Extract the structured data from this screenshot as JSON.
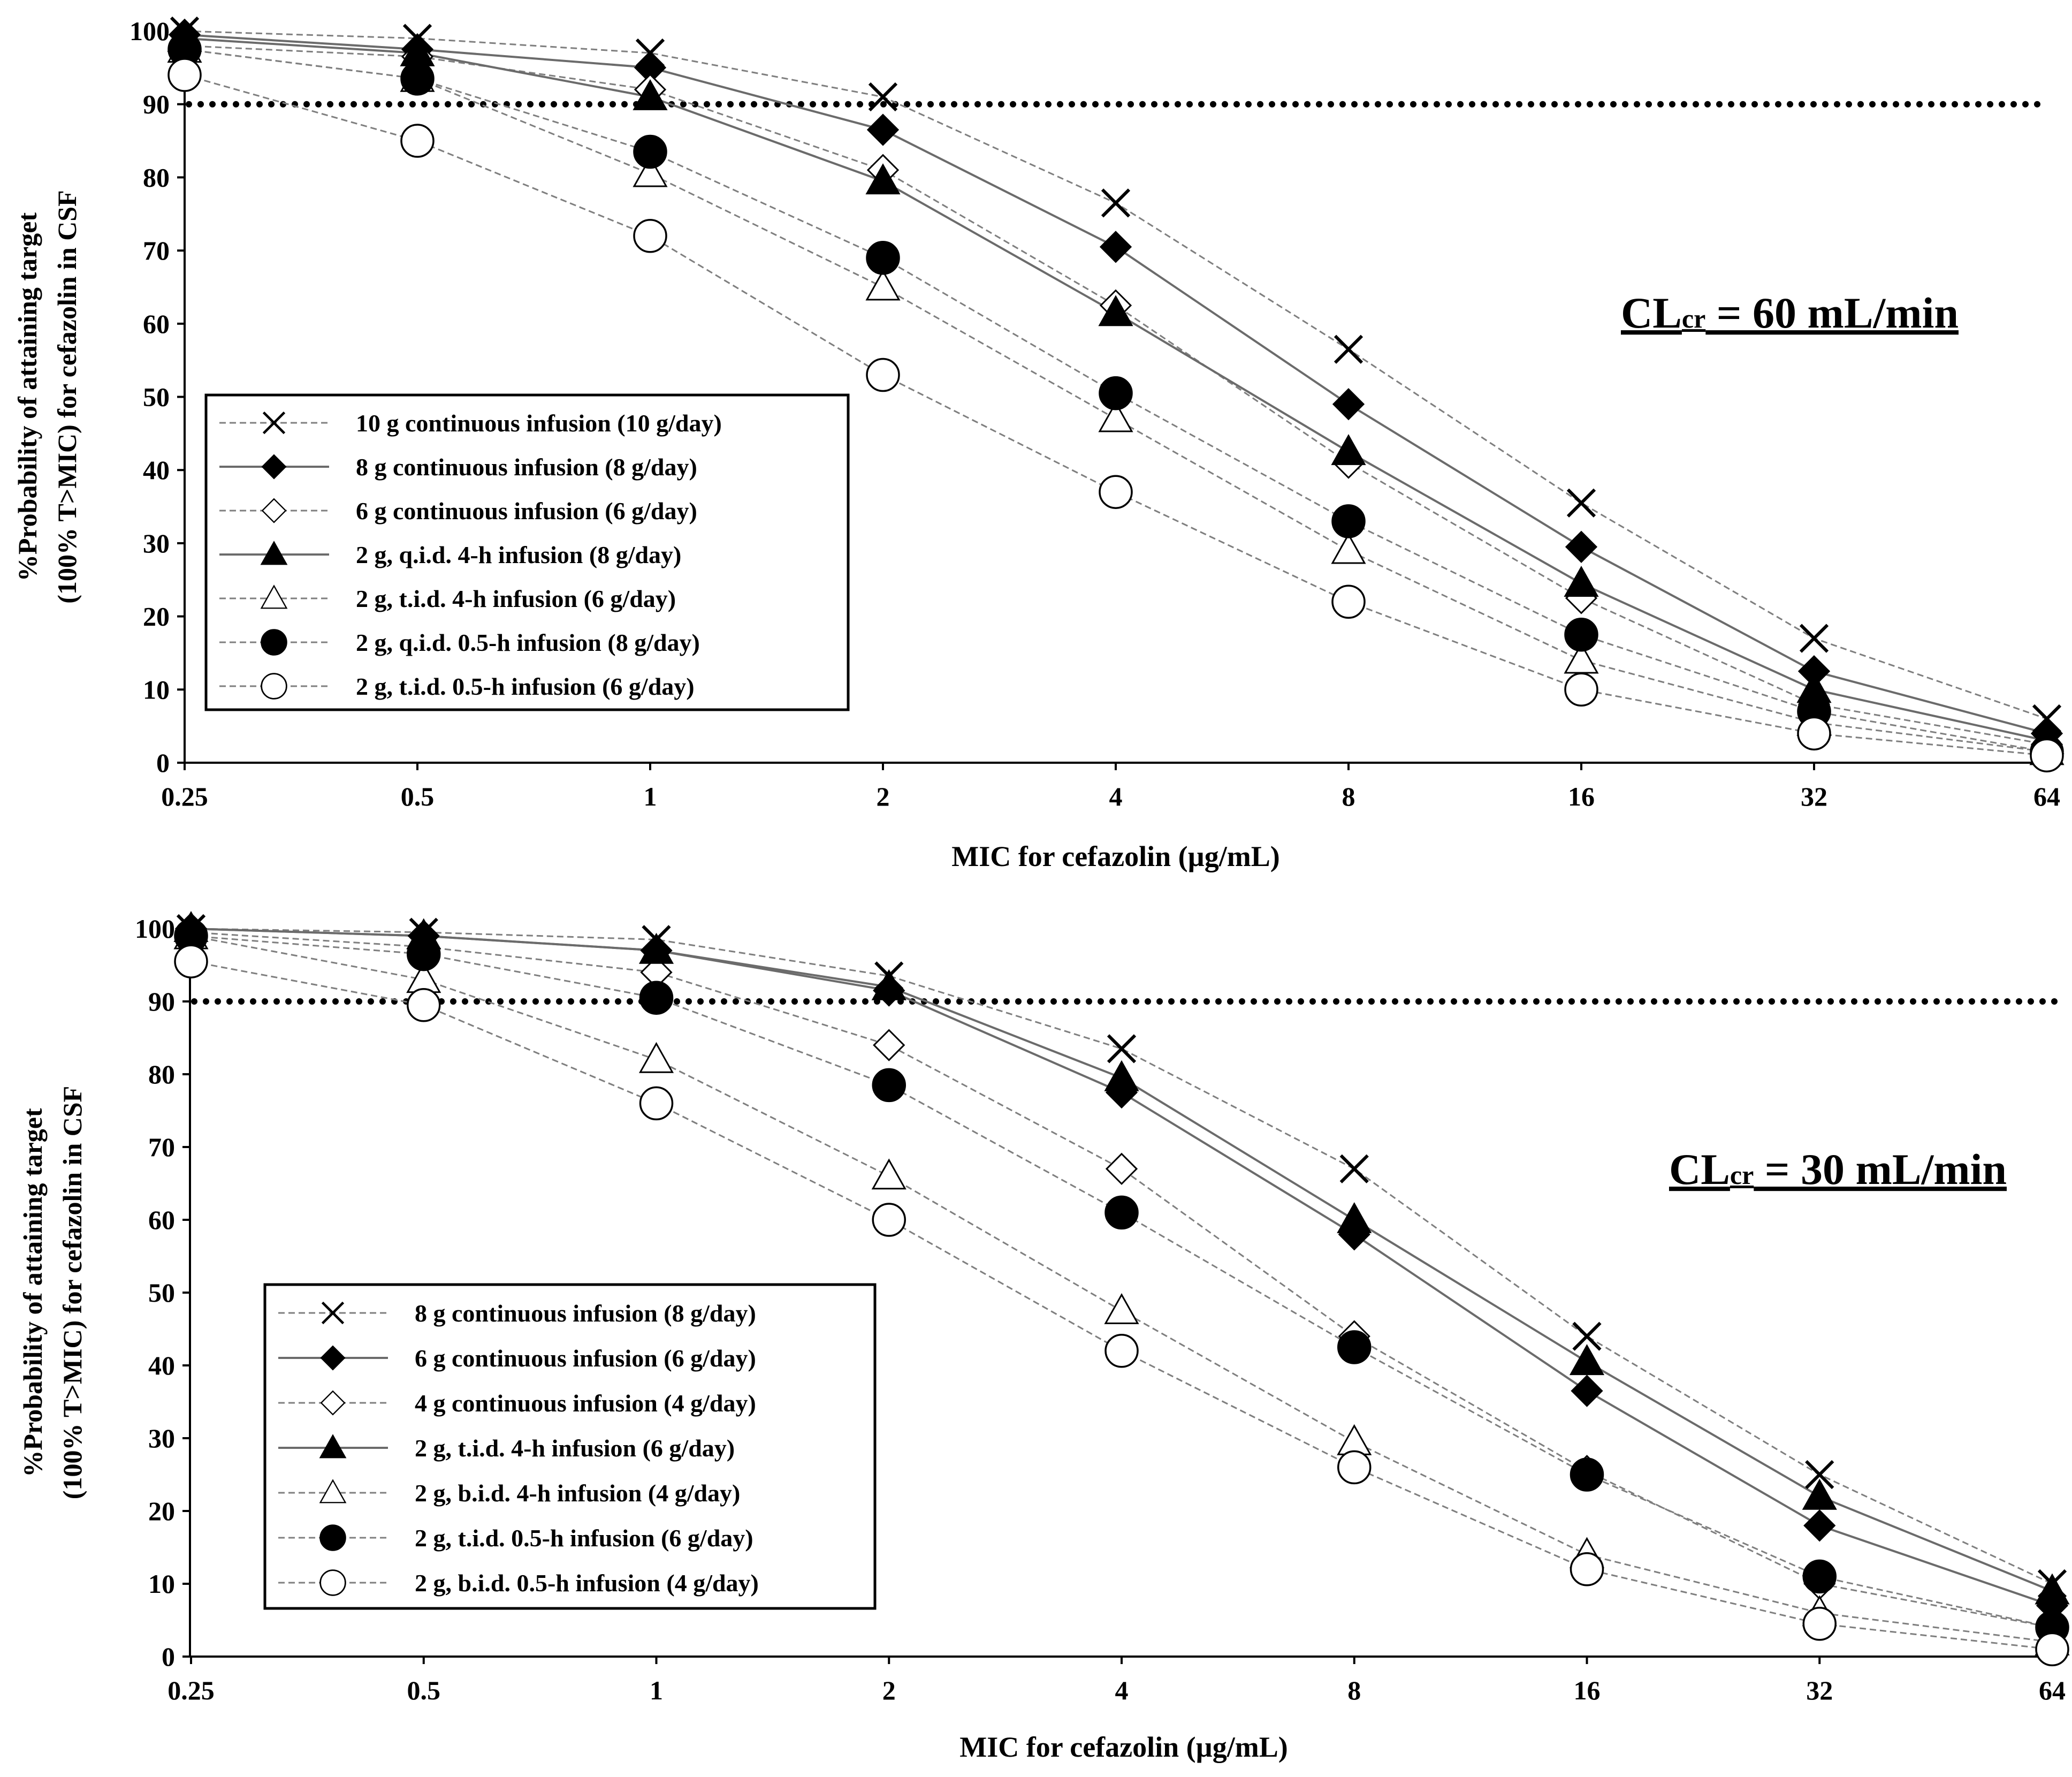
{
  "chart_data": [
    {
      "type": "line",
      "panel": "top",
      "annotation": {
        "prefix": "CL",
        "subscript": "cr",
        "suffix": " = 60 mL/min"
      },
      "xlabel": "MIC for cefazolin (µg/mL)",
      "ylabel_line1": "%Probability of attaining target",
      "ylabel_line2": "(100% T>MIC) for cefazolin in CSF",
      "x_scale": "log2",
      "categories": [
        "0.25",
        "0.5",
        "1",
        "2",
        "4",
        "8",
        "16",
        "32",
        "64"
      ],
      "yticks": [
        "0",
        "10",
        "20",
        "30",
        "40",
        "50",
        "60",
        "70",
        "80",
        "90",
        "100"
      ],
      "ylim": [
        0,
        100
      ],
      "target_line": 90,
      "legend_position": "left-middle",
      "series": [
        {
          "name": "10 g continuous infusion (10 g/day)",
          "marker": "x",
          "line": "dashed",
          "values": [
            100,
            99,
            97,
            91,
            76.5,
            56.5,
            35.5,
            17,
            6
          ]
        },
        {
          "name": "8 g continuous infusion (8 g/day)",
          "marker": "filled-diamond",
          "line": "solid",
          "values": [
            99.5,
            97.5,
            95,
            86.5,
            70.5,
            49,
            29.5,
            12.5,
            4
          ]
        },
        {
          "name": "6 g continuous infusion (6 g/day)",
          "marker": "open-diamond",
          "line": "dashed",
          "values": [
            98,
            96.5,
            92,
            81,
            62.5,
            41,
            22.5,
            8,
            2.5
          ]
        },
        {
          "name": "2 g, q.i.d. 4-h infusion (8 g/day)",
          "marker": "filled-triangle",
          "line": "solid",
          "values": [
            99,
            97,
            91,
            79.5,
            61.5,
            42.5,
            24.5,
            10,
            3
          ]
        },
        {
          "name": "2 g, t.i.d. 4-h infusion (6 g/day)",
          "marker": "open-triangle",
          "line": "dashed",
          "values": [
            97.5,
            93.5,
            80.5,
            65,
            47,
            29,
            14,
            5.5,
            1.5
          ]
        },
        {
          "name": "2 g, q.i.d. 0.5-h infusion (8 g/day)",
          "marker": "filled-circle",
          "line": "dashed",
          "values": [
            97.5,
            93.5,
            83.5,
            69,
            50.5,
            33,
            17.5,
            7,
            1.5
          ]
        },
        {
          "name": "2 g, t.i.d. 0.5-h infusion (6 g/day)",
          "marker": "open-circle",
          "line": "dashed",
          "values": [
            94,
            85,
            72,
            53,
            37,
            22,
            10,
            4,
            1
          ]
        }
      ]
    },
    {
      "type": "line",
      "panel": "bottom",
      "annotation": {
        "prefix": "CL",
        "subscript": "cr",
        "suffix": " = 30 mL/min"
      },
      "xlabel": "MIC for cefazolin (µg/mL)",
      "ylabel_line1": "%Probability of attaining target",
      "ylabel_line2": "(100% T>MIC) for cefazolin in CSF",
      "x_scale": "log2",
      "categories": [
        "0.25",
        "0.5",
        "1",
        "2",
        "4",
        "8",
        "16",
        "32",
        "64"
      ],
      "yticks": [
        "0",
        "10",
        "20",
        "30",
        "40",
        "50",
        "60",
        "70",
        "80",
        "90",
        "100"
      ],
      "ylim": [
        0,
        100
      ],
      "target_line": 90,
      "legend_position": "bottom-left",
      "series": [
        {
          "name": "8 g continuous infusion (8 g/day)",
          "marker": "x",
          "line": "dashed",
          "values": [
            100,
            99.5,
            98.5,
            93.5,
            83.5,
            67,
            44,
            25,
            10
          ]
        },
        {
          "name": "6 g continuous infusion (6 g/day)",
          "marker": "filled-diamond",
          "line": "solid",
          "values": [
            100,
            99,
            97,
            91.5,
            77.5,
            58,
            36.5,
            18,
            7
          ]
        },
        {
          "name": "4 g continuous infusion (4 g/day)",
          "marker": "open-diamond",
          "line": "dashed",
          "values": [
            99.5,
            97.5,
            94,
            84,
            67,
            44,
            25.5,
            10,
            4
          ]
        },
        {
          "name": "2 g, t.i.d. 4-h infusion (6 g/day)",
          "marker": "filled-triangle",
          "line": "solid",
          "values": [
            100,
            99,
            97,
            92,
            79.5,
            60,
            40.5,
            22,
            9
          ]
        },
        {
          "name": "2 g, b.i.d. 4-h infusion (4 g/day)",
          "marker": "open-triangle",
          "line": "dashed",
          "values": [
            99,
            93,
            82,
            66,
            47.5,
            29.5,
            14,
            6,
            2
          ]
        },
        {
          "name": "2 g, t.i.d. 0.5-h infusion (6 g/day)",
          "marker": "filled-circle",
          "line": "dashed",
          "values": [
            99,
            96.5,
            90.5,
            78.5,
            61,
            42.5,
            25,
            11,
            4
          ]
        },
        {
          "name": "2 g, b.i.d. 0.5-h infusion (4 g/day)",
          "marker": "open-circle",
          "line": "dashed",
          "values": [
            95.5,
            89.5,
            76,
            60,
            42,
            26,
            12,
            4.5,
            1
          ]
        }
      ]
    }
  ]
}
